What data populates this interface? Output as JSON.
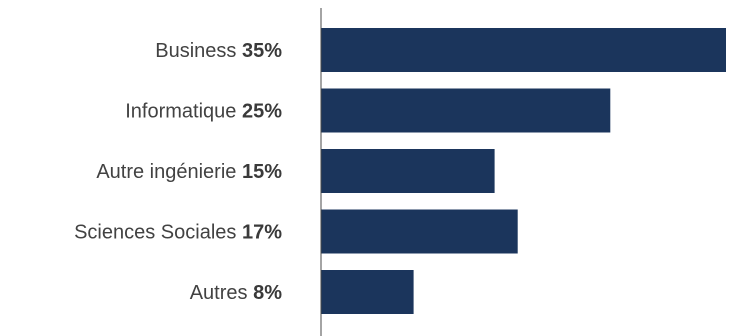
{
  "chart_data": {
    "type": "bar",
    "orientation": "horizontal",
    "categories": [
      "Business",
      "Informatique",
      "Autre ingénierie",
      "Sciences Sociales",
      "Autres"
    ],
    "values": [
      35,
      25,
      15,
      17,
      8
    ],
    "value_labels": [
      "35%",
      "25%",
      "15%",
      "17%",
      "8%"
    ],
    "bar_color": "#1b355c",
    "axis_color": "#4a4a4a",
    "grid": false,
    "legend": "none"
  }
}
